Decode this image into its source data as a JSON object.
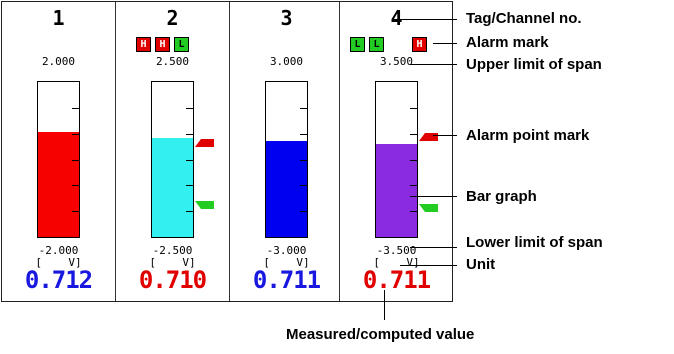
{
  "channels": [
    {
      "tag": "1",
      "alarms": [],
      "upper": "2.000",
      "lower": "-2.000",
      "unit": "[    V]",
      "value": "0.712",
      "value_color": "#1818e0",
      "bar_color": "#f70000",
      "level": 0.678,
      "alarm_marks": []
    },
    {
      "tag": "2",
      "alarms": [
        "H",
        "H",
        "L"
      ],
      "upper": "2.500",
      "lower": "-2.500",
      "unit": "[    V]",
      "value": "0.710",
      "value_color": "#e00000",
      "bar_color": "#33f0f0",
      "level": 0.642,
      "alarm_marks": [
        {
          "type": "H",
          "level": 0.6
        },
        {
          "type": "L",
          "level": 0.2
        }
      ]
    },
    {
      "tag": "3",
      "alarms": [],
      "upper": "3.000",
      "lower": "-3.000",
      "unit": "[    V]",
      "value": "0.711",
      "value_color": "#1818e0",
      "bar_color": "#0000f0",
      "level": 0.618,
      "alarm_marks": []
    },
    {
      "tag": "4",
      "alarms": [
        "L",
        "L",
        "H"
      ],
      "upper": "3.500",
      "lower": "-3.500",
      "unit": "[    V]",
      "value": "0.711",
      "value_color": "#e00000",
      "bar_color": "#8a2be2",
      "level": 0.602,
      "alarm_marks": [
        {
          "type": "H",
          "level": 0.64
        },
        {
          "type": "L",
          "level": 0.18
        }
      ]
    }
  ],
  "callouts": {
    "tag_channel": "Tag/Channel no.",
    "alarm_mark": "Alarm mark",
    "upper_limit": "Upper limit of span",
    "alarm_point": "Alarm point mark",
    "bar_graph": "Bar graph",
    "lower_limit": "Lower limit of span",
    "unit": "Unit",
    "measured": "Measured/computed value"
  },
  "colors": {
    "alarm_high": "#e00000",
    "alarm_low": "#22cc22"
  }
}
